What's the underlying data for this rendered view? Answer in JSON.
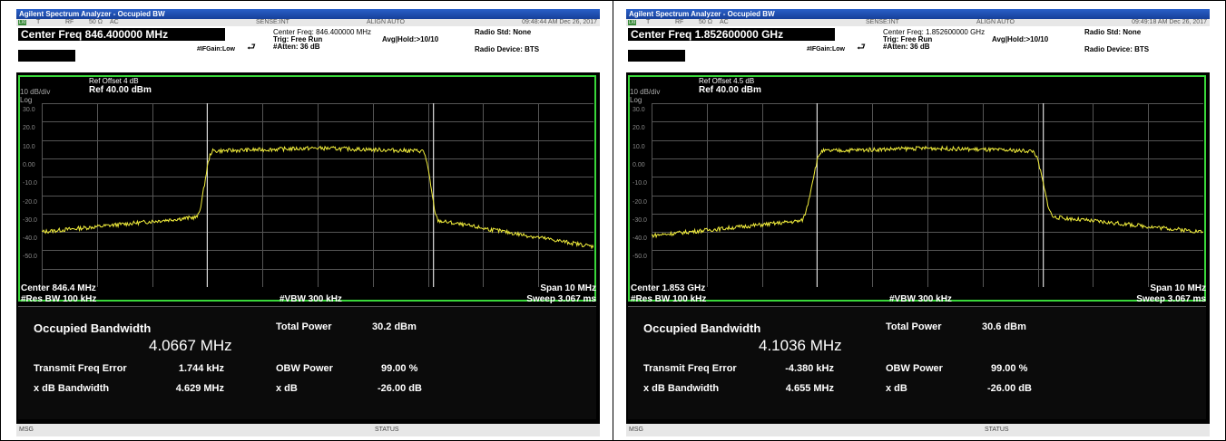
{
  "colors": {
    "trace": "#f2ee3c",
    "border": "#39d63a",
    "titlebar": "#1e50b6"
  },
  "panels": [
    {
      "title": "Agilent Spectrum Analyzer - Occupied BW",
      "status": {
        "lxi": "LXI",
        "t": "T",
        "rf": "RF",
        "imp": "50 Ω",
        "ac": "AC",
        "sense": "SENSE:INT",
        "align": "ALIGN AUTO",
        "time": "09:48:44 AM Dec 26, 2017"
      },
      "center_freq": "Center Freq 846.400000 MHz",
      "info1": "Center Freq: 846.400000 MHz",
      "info2": "Trig: Free Run",
      "info3": "#Atten: 36 dB",
      "avg": "Avg|Hold:>10/10",
      "ifgain": "#IFGain:Low",
      "radio_std": "Radio Std: None",
      "radio_dev": "Radio Device: BTS",
      "scale": "10 dB/div",
      "log": "Log",
      "ref_offset": "Ref Offset 4 dB",
      "ref_level": "Ref 40.00 dBm",
      "ylabels": [
        "30.0",
        "20.0",
        "10.0",
        "0.00",
        "-10.0",
        "-20.0",
        "-30.0",
        "-40.0",
        "-50.0"
      ],
      "center": "Center  846.4 MHz",
      "span": "Span 10 MHz",
      "rbw": "#Res BW  100 kHz",
      "vbw": "#VBW  300 kHz",
      "sweep": "Sweep  3.067 ms",
      "meas": {
        "occ_label": "Occupied Bandwidth",
        "occ_value": "4.0667 MHz",
        "total_power_label": "Total Power",
        "total_power": "30.2 dBm",
        "tfe_label": "Transmit Freq Error",
        "tfe": "1.744 kHz",
        "obw_label": "OBW Power",
        "obw": "99.00 %",
        "xdbbw_label": "x dB Bandwidth",
        "xdbbw": "4.629 MHz",
        "xdb_label": "x dB",
        "xdb": "-26.00 dB"
      },
      "msg": "MSG",
      "statuslbl": "STATUS",
      "trace": {
        "left_start": -30,
        "left_end": -22,
        "plateau": 16,
        "right_start": -24,
        "right_end": -38,
        "rise_start": 0.28,
        "rise_end": 0.31,
        "fall_start": 0.69,
        "fall_end": 0.72
      }
    },
    {
      "title": "Agilent Spectrum Analyzer - Occupied BW",
      "status": {
        "lxi": "LXI",
        "t": "T",
        "rf": "RF",
        "imp": "50 Ω",
        "ac": "AC",
        "sense": "SENSE:INT",
        "align": "ALIGN AUTO",
        "time": "09:49:18 AM Dec 26, 2017"
      },
      "center_freq": "Center Freq 1.852600000 GHz",
      "info1": "Center Freq: 1.852600000 GHz",
      "info2": "Trig: Free Run",
      "info3": "#Atten: 36 dB",
      "avg": "Avg|Hold:>10/10",
      "ifgain": "#IFGain:Low",
      "radio_std": "Radio Std: None",
      "radio_dev": "Radio Device: BTS",
      "scale": "10 dB/div",
      "log": "Log",
      "ref_offset": "Ref Offset 4.5 dB",
      "ref_level": "Ref 40.00 dBm",
      "ylabels": [
        "30.0",
        "20.0",
        "10.0",
        "0.00",
        "-10.0",
        "-20.0",
        "-30.0",
        "-40.0",
        "-50.0"
      ],
      "center": "Center  1.853 GHz",
      "span": "Span 10 MHz",
      "rbw": "#Res BW  100 kHz",
      "vbw": "#VBW  300 kHz",
      "sweep": "Sweep  3.067 ms",
      "meas": {
        "occ_label": "Occupied Bandwidth",
        "occ_value": "4.1036 MHz",
        "total_power_label": "Total Power",
        "total_power": "30.6 dBm",
        "tfe_label": "Transmit Freq Error",
        "tfe": "-4.380 kHz",
        "obw_label": "OBW Power",
        "obw": "99.00 %",
        "xdbbw_label": "x dB Bandwidth",
        "xdbbw": "4.655 MHz",
        "xdb_label": "x dB",
        "xdb": "-26.00 dB"
      },
      "msg": "MSG",
      "statuslbl": "STATUS",
      "trace": {
        "left_start": -32,
        "left_end": -24,
        "plateau": 16,
        "right_start": -22,
        "right_end": -30,
        "rise_start": 0.27,
        "rise_end": 0.31,
        "fall_start": 0.69,
        "fall_end": 0.73
      }
    }
  ]
}
